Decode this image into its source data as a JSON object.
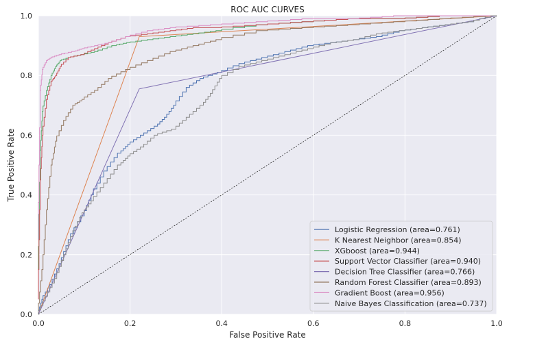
{
  "chart_data": {
    "type": "line",
    "title": "ROC AUC CURVES",
    "xlabel": "False Positive Rate",
    "ylabel": "True Positive Rate",
    "xlim": [
      0,
      1
    ],
    "ylim": [
      0,
      1
    ],
    "xticks": [
      "0.0",
      "0.2",
      "0.4",
      "0.6",
      "0.8",
      "1.0"
    ],
    "yticks": [
      "0.0",
      "0.2",
      "0.4",
      "0.6",
      "0.8",
      "1.0"
    ],
    "grid": true,
    "background": "#eaeaf2",
    "legend_position": "lower right",
    "series": [
      {
        "name": "Logistic Regression  (area=0.761)",
        "color": "#4c72b0",
        "x": [
          0,
          0.01,
          0.03,
          0.05,
          0.07,
          0.1,
          0.12,
          0.15,
          0.18,
          0.2,
          0.23,
          0.26,
          0.28,
          0.3,
          0.33,
          0.36,
          0.4,
          0.45,
          0.5,
          0.55,
          0.6,
          0.65,
          0.7,
          0.75,
          0.8,
          0.85,
          0.9,
          0.95,
          1.0
        ],
        "y": [
          0,
          0.05,
          0.1,
          0.17,
          0.25,
          0.33,
          0.4,
          0.48,
          0.54,
          0.57,
          0.6,
          0.63,
          0.66,
          0.7,
          0.76,
          0.79,
          0.81,
          0.84,
          0.86,
          0.88,
          0.9,
          0.91,
          0.92,
          0.93,
          0.95,
          0.96,
          0.97,
          0.98,
          1.0
        ]
      },
      {
        "name": "K Nearest Neighbor  (area=0.854)",
        "color": "#dd8452",
        "x": [
          0,
          0.22,
          1.0
        ],
        "y": [
          0,
          0.93,
          1.0
        ]
      },
      {
        "name": "XGboost (area=0.944)",
        "color": "#55a868",
        "x": [
          0,
          0.005,
          0.01,
          0.02,
          0.03,
          0.04,
          0.05,
          0.07,
          0.1,
          0.13,
          0.17,
          0.2,
          0.25,
          0.3,
          0.35,
          0.4,
          0.5,
          0.6,
          0.7,
          0.8,
          0.9,
          1.0
        ],
        "y": [
          0.12,
          0.55,
          0.68,
          0.75,
          0.8,
          0.83,
          0.85,
          0.86,
          0.87,
          0.88,
          0.9,
          0.91,
          0.92,
          0.93,
          0.94,
          0.95,
          0.97,
          0.98,
          0.99,
          0.99,
          1.0,
          1.0
        ]
      },
      {
        "name": "Support Vector Classifier  (area=0.940)",
        "color": "#c44e52",
        "x": [
          0,
          0.005,
          0.01,
          0.02,
          0.03,
          0.04,
          0.05,
          0.07,
          0.1,
          0.13,
          0.16,
          0.2,
          0.25,
          0.3,
          0.35,
          0.4,
          0.5,
          0.6,
          0.7,
          0.8,
          0.9,
          1.0
        ],
        "y": [
          0.05,
          0.45,
          0.6,
          0.72,
          0.78,
          0.8,
          0.83,
          0.86,
          0.87,
          0.89,
          0.91,
          0.93,
          0.94,
          0.95,
          0.96,
          0.96,
          0.97,
          0.98,
          0.99,
          0.99,
          1.0,
          1.0
        ]
      },
      {
        "name": "Decision Tree Classifier  (area=0.766)",
        "color": "#8172b3",
        "x": [
          0,
          0.22,
          1.0
        ],
        "y": [
          0,
          0.755,
          1.0
        ]
      },
      {
        "name": "Random Forest Classifier  (area=0.893)",
        "color": "#937860",
        "x": [
          0,
          0.01,
          0.02,
          0.03,
          0.04,
          0.06,
          0.08,
          0.1,
          0.13,
          0.16,
          0.2,
          0.25,
          0.3,
          0.35,
          0.4,
          0.5,
          0.6,
          0.7,
          0.8,
          0.9,
          1.0
        ],
        "y": [
          0,
          0.15,
          0.35,
          0.5,
          0.58,
          0.65,
          0.7,
          0.72,
          0.75,
          0.79,
          0.82,
          0.85,
          0.88,
          0.9,
          0.92,
          0.95,
          0.96,
          0.97,
          0.98,
          0.99,
          1.0
        ]
      },
      {
        "name": "Gradient Boost  (area=0.956)",
        "color": "#da8bc3",
        "x": [
          0,
          0.005,
          0.01,
          0.02,
          0.03,
          0.05,
          0.08,
          0.1,
          0.13,
          0.16,
          0.2,
          0.25,
          0.3,
          0.4,
          0.5,
          0.6,
          0.7,
          0.8,
          0.9,
          1.0
        ],
        "y": [
          0.25,
          0.75,
          0.82,
          0.85,
          0.86,
          0.87,
          0.88,
          0.89,
          0.9,
          0.91,
          0.93,
          0.95,
          0.96,
          0.97,
          0.98,
          0.99,
          0.99,
          1.0,
          1.0,
          1.0
        ]
      },
      {
        "name": "Naive Bayes Classification  (area=0.737)",
        "color": "#8c8c8c",
        "x": [
          0,
          0.02,
          0.04,
          0.06,
          0.08,
          0.1,
          0.12,
          0.15,
          0.18,
          0.2,
          0.23,
          0.26,
          0.3,
          0.33,
          0.36,
          0.38,
          0.4,
          0.45,
          0.5,
          0.55,
          0.6,
          0.65,
          0.7,
          0.75,
          0.8,
          0.85,
          0.9,
          0.95,
          1.0
        ],
        "y": [
          0,
          0.06,
          0.12,
          0.2,
          0.28,
          0.34,
          0.38,
          0.44,
          0.5,
          0.53,
          0.56,
          0.6,
          0.62,
          0.66,
          0.7,
          0.74,
          0.79,
          0.83,
          0.85,
          0.87,
          0.89,
          0.91,
          0.92,
          0.94,
          0.95,
          0.96,
          0.97,
          0.98,
          1.0
        ]
      },
      {
        "color": "#262626",
        "dashed": true,
        "x": [
          0,
          1
        ],
        "y": [
          0,
          1
        ]
      }
    ]
  }
}
